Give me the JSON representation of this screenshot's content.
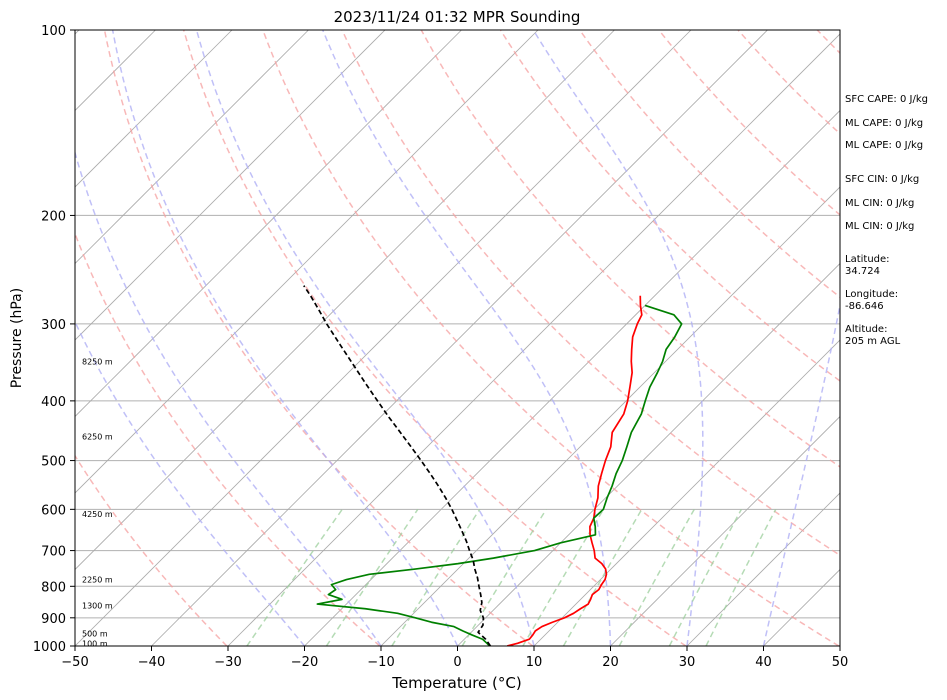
{
  "chart_data": {
    "type": "line",
    "title": "2023/11/24 01:32 MPR Sounding",
    "xlabel": "Temperature (°C)",
    "ylabel": "Pressure (hPa)",
    "xlim": [
      -50,
      50
    ],
    "ylim": [
      1000,
      100
    ],
    "y_scale": "log",
    "skew": "skew-T",
    "grid": true,
    "x_ticks": [
      -50,
      -40,
      -30,
      -20,
      -10,
      0,
      10,
      20,
      30,
      40,
      50
    ],
    "y_ticks": [
      1000,
      900,
      800,
      700,
      600,
      500,
      400,
      300,
      200,
      100
    ],
    "height_labels": [
      {
        "p": 990,
        "label": "100 m"
      },
      {
        "p": 955,
        "label": "500 m"
      },
      {
        "p": 860,
        "label": "1300 m"
      },
      {
        "p": 780,
        "label": "2250 m"
      },
      {
        "p": 610,
        "label": "4250 m"
      },
      {
        "p": 457,
        "label": "6250 m"
      },
      {
        "p": 345,
        "label": "8250 m"
      }
    ],
    "series": [
      {
        "color": "#ff0000",
        "p": [
          1000,
          990,
          975,
          960,
          945,
          930,
          915,
          900,
          885,
          870,
          855,
          840,
          825,
          810,
          795,
          780,
          765,
          750,
          735,
          720,
          700,
          680,
          660,
          640,
          620,
          600,
          575,
          550,
          525,
          500,
          475,
          450,
          420,
          400,
          380,
          360,
          345,
          330,
          315,
          300,
          290,
          280,
          270
        ],
        "t": [
          6.5,
          7.5,
          8.5,
          8.4,
          8.2,
          8.5,
          9.3,
          10.3,
          10.9,
          11.2,
          11.6,
          11.3,
          10.9,
          11.1,
          10.8,
          10.6,
          10.1,
          9.3,
          8.1,
          6.5,
          5.4,
          4.1,
          2.8,
          1.7,
          1.1,
          0.1,
          -1.0,
          -2.5,
          -3.7,
          -4.9,
          -6.0,
          -7.7,
          -8.6,
          -9.8,
          -11.3,
          -12.9,
          -14.5,
          -16.0,
          -17.5,
          -18.6,
          -19.2,
          -20.6,
          -21.9
        ]
      },
      {
        "color": "#008000",
        "p": [
          1000,
          990,
          975,
          960,
          945,
          930,
          915,
          900,
          885,
          870,
          855,
          840,
          825,
          810,
          795,
          780,
          765,
          750,
          735,
          720,
          700,
          680,
          660,
          640,
          620,
          600,
          575,
          550,
          525,
          500,
          475,
          450,
          420,
          400,
          380,
          360,
          345,
          330,
          315,
          300,
          290,
          280
        ],
        "t": [
          4.2,
          3.5,
          2.4,
          0.5,
          -1.3,
          -3.0,
          -6.5,
          -9.2,
          -12.1,
          -16.9,
          -23.8,
          -21.2,
          -23.6,
          -23.3,
          -24.5,
          -23.2,
          -20.9,
          -15.6,
          -10.7,
          -6.8,
          -2.4,
          0.0,
          3.5,
          2.4,
          1.1,
          1.2,
          0.2,
          -0.7,
          -1.8,
          -2.7,
          -3.9,
          -5.2,
          -6.3,
          -7.5,
          -8.7,
          -9.6,
          -10.4,
          -11.5,
          -12.0,
          -12.8,
          -15.0,
          -20.0
        ]
      },
      {
        "color": "#000000",
        "dashed": true,
        "p": [
          1000,
          975,
          950,
          925,
          900,
          875,
          850,
          825,
          800,
          775,
          750,
          725,
          700,
          675,
          650,
          625,
          600,
          575,
          550,
          525,
          500,
          475,
          450,
          425,
          400,
          375,
          350,
          325,
          300,
          285,
          270,
          260
        ],
        "t": [
          4.3,
          2.8,
          0.9,
          0.6,
          -0.3,
          -1.7,
          -2.5,
          -3.7,
          -5.0,
          -6.3,
          -7.8,
          -9.2,
          -10.9,
          -12.6,
          -14.5,
          -16.5,
          -18.6,
          -20.9,
          -23.4,
          -26.1,
          -29.0,
          -32.1,
          -35.4,
          -38.9,
          -42.5,
          -46.3,
          -50.3,
          -54.6,
          -59.2,
          -62.0,
          -65.0,
          -67.2
        ]
      }
    ],
    "annotations": [
      "SFC CAPE: 0 J/kg",
      "ML CAPE: 0 J/kg",
      "ML CAPE: 0 J/kg",
      "SFC CIN: 0 J/kg",
      "ML CIN: 0 J/kg",
      "ML CIN: 0 J/kg",
      "Latitude:",
      "34.724",
      "Longitude:",
      "-86.646",
      "Altitude:",
      "205 m AGL"
    ]
  }
}
